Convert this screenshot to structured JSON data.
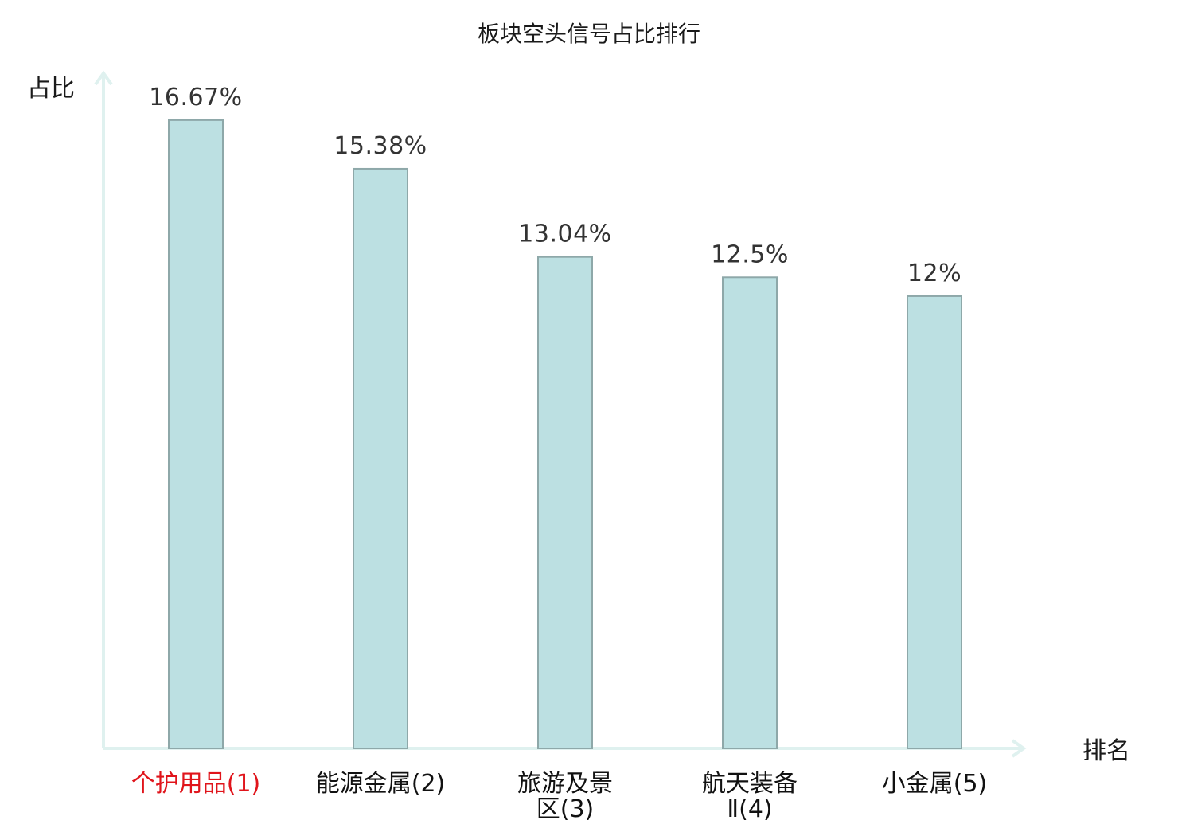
{
  "chart_data": {
    "type": "bar",
    "title": "板块空头信号占比排行",
    "ylabel": "占比",
    "xlabel": "排名",
    "categories": [
      [
        "个护用品(1)"
      ],
      [
        "能源金属(2)"
      ],
      [
        "旅游及景",
        "区(3)"
      ],
      [
        "航天装备",
        "Ⅱ(4)"
      ],
      [
        "小金属(5)"
      ]
    ],
    "values": [
      16.67,
      15.38,
      13.04,
      12.5,
      12
    ],
    "value_labels": [
      "16.67%",
      "15.38%",
      "13.04%",
      "12.5%",
      "12%"
    ],
    "ylim": [
      0,
      16.9
    ],
    "highlight_index": 0,
    "grid": false,
    "colors": {
      "bar_fill": "#bce0e2",
      "bar_stroke": "#8ea8a9",
      "axis": "#dff1ef",
      "highlight_text": "#e0141b",
      "text": "#111111"
    }
  }
}
